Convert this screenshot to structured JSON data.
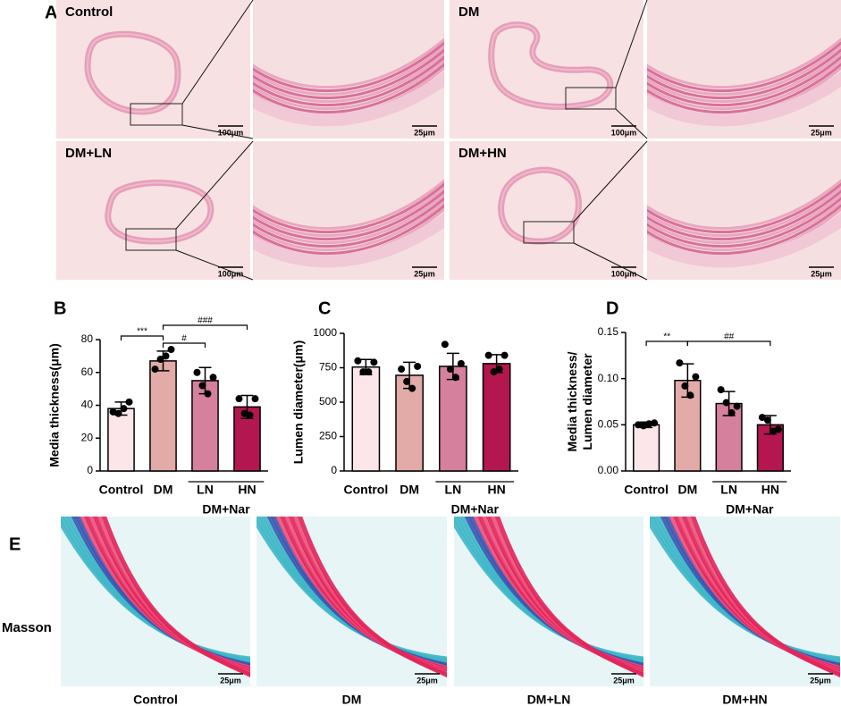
{
  "panel_labels": [
    "A",
    "B",
    "C",
    "D",
    "E"
  ],
  "panel_a": {
    "images": [
      {
        "label": "Control",
        "scale": "100μm"
      },
      {
        "scale": "25μm"
      },
      {
        "label": "DM",
        "scale": "100μm"
      },
      {
        "scale": "25μm"
      },
      {
        "label": "DM+LN",
        "scale": "100μm"
      },
      {
        "scale": "25μm"
      },
      {
        "label": "DM+HN",
        "scale": "100μm"
      },
      {
        "scale": "25μm"
      }
    ]
  },
  "panel_e": {
    "row_label": "Masson",
    "images": [
      {
        "label": "Control",
        "scale": "25μm"
      },
      {
        "label": "DM",
        "scale": "25μm"
      },
      {
        "label": "DM+LN",
        "scale": "25μm"
      },
      {
        "label": "DM+HN",
        "scale": "25μm"
      }
    ]
  },
  "chart_data": [
    {
      "type": "bar",
      "y_label": [
        "Media thickness(μm)"
      ],
      "categories": [
        "Control",
        "DM",
        "LN",
        "HN"
      ],
      "group_label": "DM+Nar",
      "values": [
        38,
        67,
        55,
        39
      ],
      "errors": [
        4,
        6,
        8,
        7
      ],
      "points": [
        [
          36,
          35,
          38,
          42
        ],
        [
          62,
          68,
          70,
          74
        ],
        [
          60,
          52,
          47,
          57
        ],
        [
          44,
          35,
          34,
          44
        ]
      ],
      "colors": [
        "#fde6ea",
        "#e2aba8",
        "#d5809c",
        "#b4164f"
      ],
      "ylim": [
        0,
        80
      ],
      "yticks": [
        0,
        20,
        40,
        60,
        80
      ],
      "annotations": [
        "***",
        "#",
        "###"
      ]
    },
    {
      "type": "bar",
      "y_label": [
        "Lumen diameter(μm)"
      ],
      "categories": [
        "Control",
        "DM",
        "LN",
        "HN"
      ],
      "group_label": "DM+Nar",
      "values": [
        755,
        695,
        760,
        780
      ],
      "errors": [
        55,
        95,
        95,
        65
      ],
      "points": [
        [
          800,
          720,
          720,
          790
        ],
        [
          740,
          650,
          600,
          760
        ],
        [
          920,
          740,
          680,
          780
        ],
        [
          840,
          720,
          740,
          840
        ]
      ],
      "colors": [
        "#fde6ea",
        "#e2aba8",
        "#d5809c",
        "#b4164f"
      ],
      "ylim": [
        0,
        1000
      ],
      "yticks": [
        0,
        250,
        500,
        750,
        1000
      ],
      "annotations": []
    },
    {
      "type": "bar",
      "y_label": [
        "Media thickness/",
        "Lumen diameter"
      ],
      "categories": [
        "Control",
        "DM",
        "LN",
        "HN"
      ],
      "group_label": "DM+Nar",
      "values": [
        0.05,
        0.098,
        0.073,
        0.05
      ],
      "errors": [
        0.003,
        0.018,
        0.013,
        0.01
      ],
      "points": [
        [
          0.05,
          0.049,
          0.051,
          0.052
        ],
        [
          0.117,
          0.092,
          0.082,
          0.102
        ],
        [
          0.088,
          0.074,
          0.063,
          0.07
        ],
        [
          0.058,
          0.055,
          0.043,
          0.045
        ]
      ],
      "colors": [
        "#fde6ea",
        "#e2aba8",
        "#d5809c",
        "#b4164f"
      ],
      "ylim": [
        0,
        0.15
      ],
      "yticks": [
        {
          "value": 0,
          "label": "0.00"
        },
        {
          "value": 0.05,
          "label": "0.05"
        },
        {
          "value": 0.1,
          "label": "0.10"
        },
        {
          "value": 0.15,
          "label": "0.15"
        }
      ],
      "annotations": [
        "**",
        "##"
      ]
    }
  ]
}
